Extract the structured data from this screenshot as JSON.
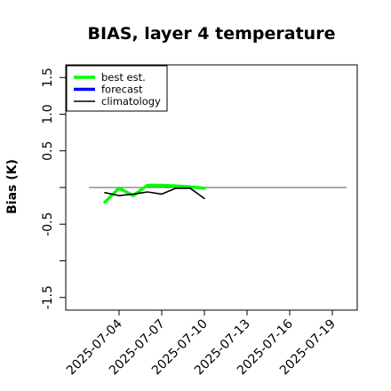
{
  "chart_data": {
    "type": "line",
    "title": "BIAS, layer 4 temperature",
    "xlabel": "",
    "ylabel": "Bias (K)",
    "xlim": [
      "2025-07-01",
      "2025-07-20"
    ],
    "ylim": [
      -1.6,
      1.6
    ],
    "x_ticks": [
      "2025-07-04",
      "2025-07-07",
      "2025-07-10",
      "2025-07-13",
      "2025-07-16",
      "2025-07-19"
    ],
    "y_ticks": [
      -1.5,
      -1.0,
      -0.5,
      0.0,
      0.5,
      1.0,
      1.5
    ],
    "y_tick_labels": [
      "-1.5",
      "",
      "-0.5",
      "",
      "0.5",
      "1.0",
      "1.5"
    ],
    "highlighted_x_tick": "2025-07-10",
    "highlight_color": "#228B22",
    "legend": {
      "position": "top-left",
      "entries": [
        {
          "label": "best est.",
          "color": "#00ff00"
        },
        {
          "label": "forecast",
          "color": "#0000ff"
        },
        {
          "label": "climatology",
          "color": "#000000"
        }
      ]
    },
    "zero_line": 0,
    "series": [
      {
        "name": "best est.",
        "color": "#00ff00",
        "x": [
          "2025-07-03",
          "2025-07-04",
          "2025-07-05",
          "2025-07-06",
          "2025-07-07",
          "2025-07-08",
          "2025-07-09",
          "2025-07-10"
        ],
        "values": [
          -0.2,
          -0.01,
          -0.11,
          0.03,
          0.03,
          0.02,
          0.01,
          -0.01
        ]
      },
      {
        "name": "climatology",
        "color": "#000000",
        "x": [
          "2025-07-03",
          "2025-07-04",
          "2025-07-05",
          "2025-07-06",
          "2025-07-07",
          "2025-07-08",
          "2025-07-09",
          "2025-07-10"
        ],
        "values": [
          -0.07,
          -0.11,
          -0.09,
          -0.06,
          -0.09,
          -0.01,
          -0.01,
          -0.15
        ]
      }
    ]
  }
}
